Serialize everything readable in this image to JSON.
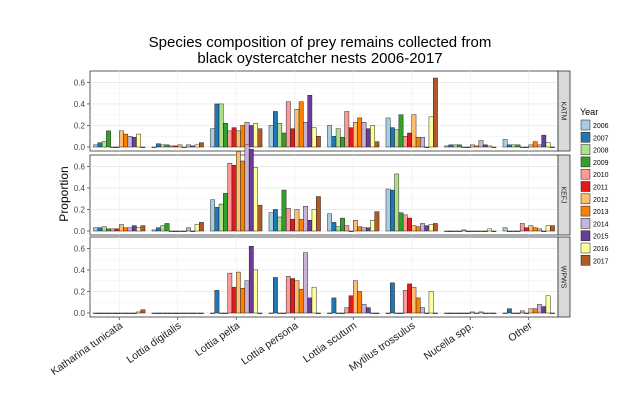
{
  "chart_data": {
    "type": "bar",
    "title_lines": [
      "Species composition of prey remains collected from",
      "black oystercatcher nests 2006-2017"
    ],
    "ylabel": "Proportion",
    "xlabel": "",
    "categories": [
      "Katharina tunicata",
      "Lottia digitalis",
      "Lottia pelta",
      "Lottia persona",
      "Lottia scutum",
      "Mytilus trossulus",
      "Nucella spp.",
      "Other"
    ],
    "years": [
      "2006",
      "2007",
      "2008",
      "2009",
      "2010",
      "2011",
      "2012",
      "2013",
      "2014",
      "2015",
      "2016",
      "2017"
    ],
    "colors": [
      "#a6cee3",
      "#1f78b4",
      "#b2df8a",
      "#33a02c",
      "#fb9a99",
      "#e31a1c",
      "#fdbf6f",
      "#ff7f00",
      "#cab2d6",
      "#6a3d9a",
      "#ffff99",
      "#b15928"
    ],
    "legend_title": "Year",
    "legend_position": "right",
    "ylim": [
      0,
      0.65
    ],
    "yticks": [
      "0.0",
      "0.2",
      "0.4",
      "0.6"
    ],
    "grid": true,
    "panels": [
      {
        "name": "KATM",
        "values": [
          [
            0.02,
            0.04,
            0.05,
            0.15,
            0.0,
            0.0,
            0.15,
            0.12,
            0.1,
            0.09,
            0.12,
            0.0
          ],
          [
            0.0,
            0.03,
            0.02,
            0.02,
            0.01,
            0.01,
            0.02,
            0.0,
            0.02,
            0.01,
            0.02,
            0.04
          ],
          [
            0.17,
            0.4,
            0.4,
            0.22,
            0.15,
            0.18,
            0.15,
            0.2,
            0.23,
            0.2,
            0.22,
            0.17
          ],
          [
            0.2,
            0.33,
            0.22,
            0.13,
            0.42,
            0.17,
            0.35,
            0.42,
            0.23,
            0.48,
            0.18,
            0.1
          ],
          [
            0.2,
            0.1,
            0.17,
            0.09,
            0.33,
            0.18,
            0.23,
            0.27,
            0.23,
            0.17,
            0.2,
            0.05
          ],
          [
            0.27,
            0.18,
            0.16,
            0.3,
            0.1,
            0.13,
            0.3,
            0.09,
            0.09,
            0.0,
            0.28,
            0.64
          ],
          [
            0.01,
            0.02,
            0.02,
            0.02,
            0.0,
            0.0,
            0.02,
            0.01,
            0.06,
            0.02,
            0.01,
            0.0
          ],
          [
            0.07,
            0.02,
            0.02,
            0.02,
            0.0,
            0.0,
            0.02,
            0.05,
            0.02,
            0.11,
            0.04,
            0.0
          ]
        ]
      },
      {
        "name": "KEFJ",
        "values": [
          [
            0.03,
            0.03,
            0.04,
            0.02,
            0.02,
            0.02,
            0.06,
            0.03,
            0.03,
            0.05,
            0.03,
            0.05
          ],
          [
            0.01,
            0.03,
            0.05,
            0.07,
            0.0,
            0.0,
            0.0,
            0.0,
            0.03,
            0.0,
            0.06,
            0.08
          ],
          [
            0.29,
            0.22,
            0.25,
            0.35,
            0.63,
            0.61,
            0.74,
            0.65,
            0.8,
            0.76,
            0.59,
            0.24
          ],
          [
            0.17,
            0.2,
            0.13,
            0.38,
            0.21,
            0.11,
            0.2,
            0.11,
            0.23,
            0.1,
            0.2,
            0.32
          ],
          [
            0.16,
            0.08,
            0.04,
            0.12,
            0.05,
            0.0,
            0.1,
            0.04,
            0.03,
            0.03,
            0.1,
            0.18
          ],
          [
            0.39,
            0.38,
            0.53,
            0.17,
            0.15,
            0.12,
            0.05,
            0.04,
            0.07,
            0.05,
            0.06,
            0.07
          ],
          [
            0.0,
            0.0,
            0.0,
            0.0,
            0.01,
            0.0,
            0.0,
            0.0,
            0.0,
            0.0,
            0.02,
            0.0
          ],
          [
            0.03,
            0.0,
            0.0,
            0.0,
            0.07,
            0.03,
            0.05,
            0.03,
            0.02,
            0.0,
            0.05,
            0.05
          ]
        ]
      },
      {
        "name": "WPWS",
        "values": [
          [
            0.0,
            0.0,
            0.0,
            0.0,
            0.0,
            0.0,
            0.0,
            0.0,
            0.0,
            0.0,
            0.01,
            0.03
          ],
          [
            0.0,
            0.0,
            0.0,
            0.0,
            0.0,
            0.0,
            0.0,
            0.0,
            0.0,
            0.0,
            0.0,
            0.0
          ],
          [
            0.0,
            0.21,
            0.0,
            0.0,
            0.37,
            0.24,
            0.38,
            0.23,
            0.3,
            0.62,
            0.4,
            0.0
          ],
          [
            0.0,
            0.33,
            0.0,
            0.0,
            0.34,
            0.32,
            0.3,
            0.22,
            0.56,
            0.14,
            0.24,
            0.0
          ],
          [
            0.0,
            0.14,
            0.0,
            0.0,
            0.05,
            0.16,
            0.3,
            0.2,
            0.08,
            0.05,
            0.0,
            0.0
          ],
          [
            0.0,
            0.28,
            0.0,
            0.0,
            0.21,
            0.27,
            0.24,
            0.14,
            0.05,
            0.0,
            0.2,
            0.0
          ],
          [
            0.0,
            0.0,
            0.0,
            0.0,
            0.0,
            0.0,
            0.01,
            0.0,
            0.01,
            0.0,
            0.0,
            0.0
          ],
          [
            0.0,
            0.04,
            0.0,
            0.0,
            0.02,
            0.0,
            0.04,
            0.04,
            0.08,
            0.06,
            0.16,
            0.0
          ]
        ]
      }
    ]
  }
}
